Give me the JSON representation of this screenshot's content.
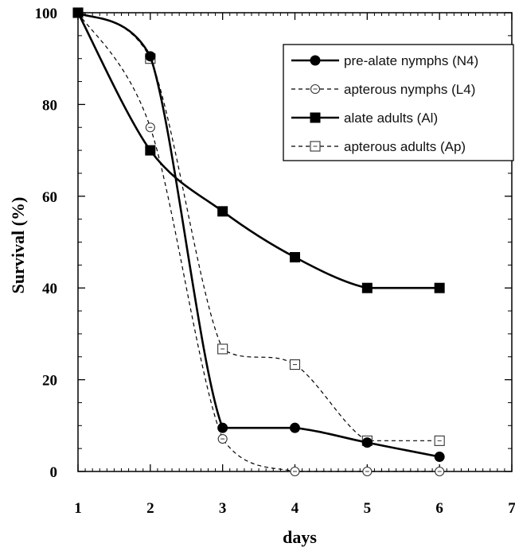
{
  "chart_data": {
    "type": "line",
    "title": "",
    "xlabel": "days",
    "ylabel": "Survival (%)",
    "xlim": [
      1,
      7
    ],
    "ylim": [
      0,
      100
    ],
    "x_ticks": [
      1,
      2,
      3,
      4,
      5,
      6,
      7
    ],
    "y_ticks": [
      0,
      20,
      40,
      60,
      80,
      100
    ],
    "grid": false,
    "legend_position": "top-right",
    "series": [
      {
        "name": "pre-alate nymphs (N4)",
        "style": "solid",
        "marker": "filled-circle",
        "color": "#000000",
        "x": [
          1,
          2,
          3,
          4,
          5,
          6
        ],
        "y": [
          100,
          90.5,
          9.5,
          9.5,
          6.3,
          3.2
        ]
      },
      {
        "name": "apterous nymphs (L4)",
        "style": "dashed",
        "marker": "open-circle",
        "color": "#000000",
        "x": [
          1,
          2,
          3,
          4,
          5,
          6
        ],
        "y": [
          100,
          75,
          7.1,
          0,
          0,
          0
        ]
      },
      {
        "name": "alate adults (Al)",
        "style": "solid",
        "marker": "filled-square",
        "color": "#000000",
        "x": [
          1,
          2,
          3,
          4,
          5,
          6
        ],
        "y": [
          100,
          70,
          56.7,
          46.7,
          40,
          40
        ]
      },
      {
        "name": "apterous adults (Ap)",
        "style": "dashed",
        "marker": "open-square",
        "color": "#000000",
        "x": [
          1,
          2,
          3,
          4,
          5,
          6
        ],
        "y": [
          100,
          90,
          26.7,
          23.3,
          6.7,
          6.7
        ]
      }
    ]
  }
}
